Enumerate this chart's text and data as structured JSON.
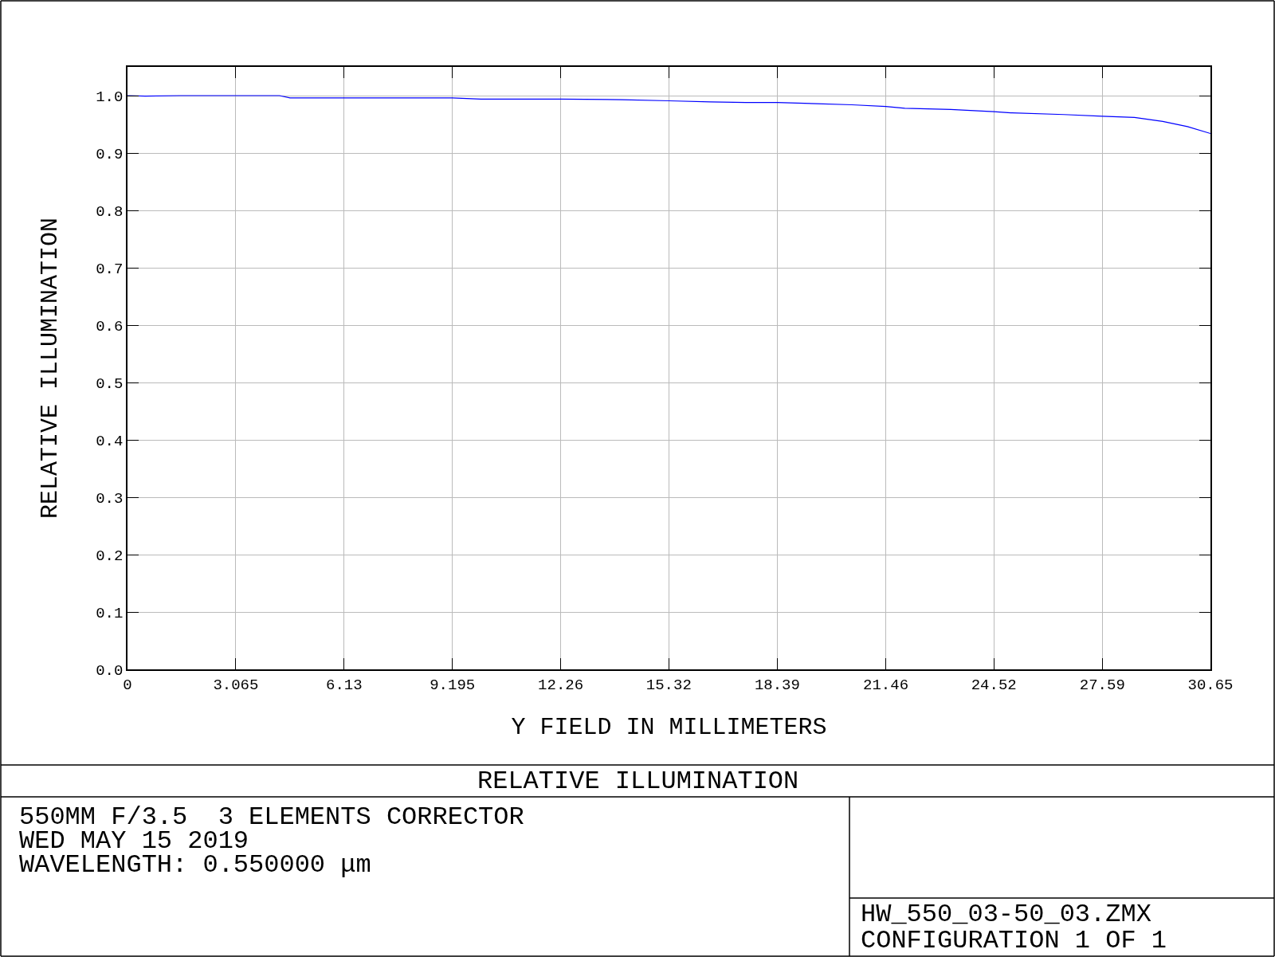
{
  "chart_data": {
    "type": "line",
    "title": "RELATIVE ILLUMINATION",
    "xlabel": "Y FIELD IN MILLIMETERS",
    "ylabel": "RELATIVE ILLUMINATION",
    "x": [
      0,
      0.5,
      1.5,
      3.0,
      4.3,
      4.6,
      6.13,
      7.5,
      9.195,
      10.0,
      11.0,
      12.26,
      14.0,
      15.32,
      16.5,
      17.5,
      18.39,
      19.5,
      20.5,
      21.46,
      22.0,
      23.3,
      24.52,
      25.0,
      26.5,
      27.59,
      28.5,
      29.3,
      30.0,
      30.65
    ],
    "series": [
      {
        "color": "#0000ff",
        "values": [
          1.0,
          0.999,
          1.0,
          1.0,
          1.0,
          0.996,
          0.996,
          0.996,
          0.996,
          0.994,
          0.994,
          0.994,
          0.993,
          0.991,
          0.989,
          0.988,
          0.988,
          0.986,
          0.984,
          0.981,
          0.978,
          0.976,
          0.972,
          0.97,
          0.967,
          0.964,
          0.962,
          0.955,
          0.946,
          0.934
        ]
      }
    ],
    "xlim": [
      0,
      30.65
    ],
    "xticks": [
      {
        "value": 0,
        "label": "0"
      },
      3.065,
      6.13,
      9.195,
      12.26,
      15.32,
      18.39,
      21.46,
      24.52,
      27.59,
      30.65
    ],
    "ylim": [
      0,
      1.05
    ],
    "yticks": [
      {
        "value": 0,
        "label": "0.0"
      },
      0.1,
      0.2,
      0.3,
      0.4,
      0.5,
      0.6,
      0.7,
      0.8,
      0.9,
      {
        "value": 1.0,
        "label": "1.0"
      }
    ],
    "grid": true,
    "line_style": "solid",
    "marker": "none",
    "annotations": [
      "550MM F/3.5  3 ELEMENTS CORRECTOR",
      "WED MAY 15 2019",
      "WAVELENGTH: 0.550000 μm",
      "HW_550_03-50_03.ZMX",
      "CONFIGURATION 1 OF 1"
    ]
  }
}
